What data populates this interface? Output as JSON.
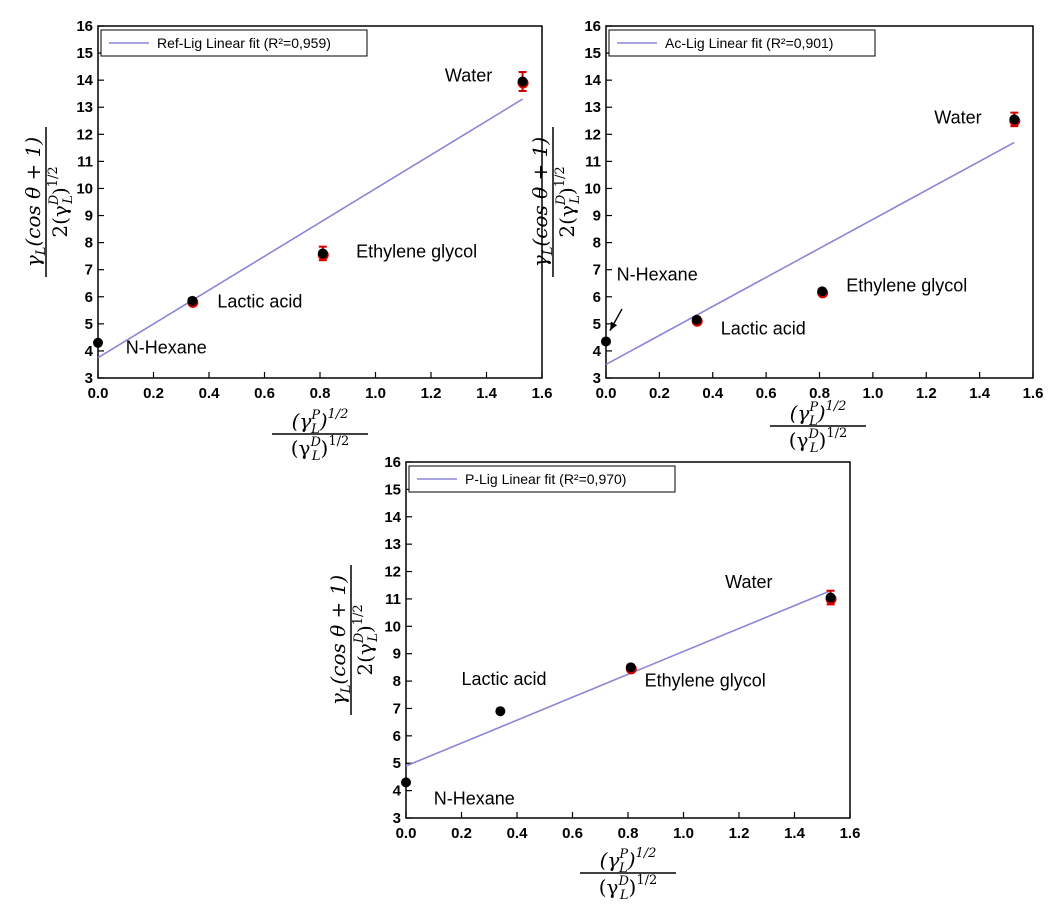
{
  "chart_data": [
    {
      "type": "scatter",
      "panel": "top-left",
      "xlim": [
        0,
        1.6
      ],
      "ylim": [
        3,
        16
      ],
      "xticks": [
        "0.0",
        "0.2",
        "0.4",
        "0.6",
        "0.8",
        "1.0",
        "1.2",
        "1.4",
        "1.6"
      ],
      "yticks": [
        "3",
        "4",
        "5",
        "6",
        "7",
        "8",
        "9",
        "10",
        "11",
        "12",
        "13",
        "14",
        "15",
        "16"
      ],
      "legend": {
        "label": "Ref-Lig Linear fit (R²=0,959)",
        "placement": "top-left"
      },
      "points": [
        {
          "name": "N-Hexane",
          "x": 0.0,
          "y": 4.3,
          "err": 0
        },
        {
          "name": "Lactic acid",
          "x": 0.34,
          "y": 5.85,
          "err": 0.1
        },
        {
          "name": "Ethylene glycol",
          "x": 0.81,
          "y": 7.6,
          "err": 0.25
        },
        {
          "name": "Water",
          "x": 1.53,
          "y": 13.95,
          "err": 0.35
        }
      ],
      "fit": {
        "x": [
          0.0,
          1.53
        ],
        "y": [
          3.75,
          13.3
        ]
      },
      "labels": [
        {
          "text": "N-Hexane",
          "x": 0.1,
          "y": 3.9
        },
        {
          "text": "Lactic acid",
          "x": 0.43,
          "y": 5.6
        },
        {
          "text": "Ethylene glycol",
          "x": 0.93,
          "y": 7.45
        },
        {
          "text": "Water",
          "x": 1.25,
          "y": 13.95
        }
      ]
    },
    {
      "type": "scatter",
      "panel": "top-right",
      "xlim": [
        0,
        1.6
      ],
      "ylim": [
        3,
        16
      ],
      "xticks": [
        "0.0",
        "0.2",
        "0.4",
        "0.6",
        "0.8",
        "1.0",
        "1.2",
        "1.4",
        "1.6"
      ],
      "yticks": [
        "3",
        "4",
        "5",
        "6",
        "7",
        "8",
        "9",
        "10",
        "11",
        "12",
        "13",
        "14",
        "15",
        "16"
      ],
      "legend": {
        "label": "Ac-Lig Linear fit (R²=0,901)",
        "placement": "top-left"
      },
      "points": [
        {
          "name": "N-Hexane",
          "x": 0.0,
          "y": 4.35,
          "err": 0
        },
        {
          "name": "Lactic acid",
          "x": 0.34,
          "y": 5.15,
          "err": 0.1
        },
        {
          "name": "Ethylene glycol",
          "x": 0.81,
          "y": 6.2,
          "err": 0.1
        },
        {
          "name": "Water",
          "x": 1.53,
          "y": 12.55,
          "err": 0.25
        }
      ],
      "fit": {
        "x": [
          0.0,
          1.53
        ],
        "y": [
          3.5,
          11.7
        ]
      },
      "labels": [
        {
          "text": "N-Hexane",
          "x": 0.04,
          "y": 6.6
        },
        {
          "text": "Lactic acid",
          "x": 0.43,
          "y": 4.6
        },
        {
          "text": "Ethylene glycol",
          "x": 0.9,
          "y": 6.2
        },
        {
          "text": "Water",
          "x": 1.23,
          "y": 12.4
        }
      ],
      "arrow": {
        "from": [
          0.06,
          5.55
        ],
        "to": [
          0.015,
          4.75
        ]
      }
    },
    {
      "type": "scatter",
      "panel": "bottom",
      "xlim": [
        0,
        1.6
      ],
      "ylim": [
        3,
        16
      ],
      "xticks": [
        "0.0",
        "0.2",
        "0.4",
        "0.6",
        "0.8",
        "1.0",
        "1.2",
        "1.4",
        "1.6"
      ],
      "yticks": [
        "3",
        "4",
        "5",
        "6",
        "7",
        "8",
        "9",
        "10",
        "11",
        "12",
        "13",
        "14",
        "15",
        "16"
      ],
      "legend": {
        "label": "P-Lig Linear fit (R²=0,970)",
        "placement": "top-left"
      },
      "points": [
        {
          "name": "N-Hexane",
          "x": 0.0,
          "y": 4.3,
          "err": 0
        },
        {
          "name": "Lactic acid",
          "x": 0.34,
          "y": 6.9,
          "err": 0
        },
        {
          "name": "Ethylene glycol",
          "x": 0.81,
          "y": 8.5,
          "err": 0.1
        },
        {
          "name": "Water",
          "x": 1.53,
          "y": 11.05,
          "err": 0.25
        }
      ],
      "fit": {
        "x": [
          0.0,
          1.53
        ],
        "y": [
          4.9,
          11.3
        ]
      },
      "labels": [
        {
          "text": "N-Hexane",
          "x": 0.1,
          "y": 3.5
        },
        {
          "text": "Lactic acid",
          "x": 0.2,
          "y": 7.85
        },
        {
          "text": "Ethylene glycol",
          "x": 0.86,
          "y": 7.8
        },
        {
          "text": "Water",
          "x": 1.15,
          "y": 11.4
        }
      ]
    }
  ],
  "colors": {
    "fit": "#8b86d6",
    "marker": "#000000",
    "error": "#d40000",
    "frame": "#000000"
  },
  "ylabel_math": {
    "num": "γ",
    "num_sub": "L",
    "num_rest": "(cos θ + 1)",
    "den": "2(γ",
    "den_sup": "D",
    "den_sub": "L",
    "den_rest": ")",
    "den_exp": "1/2"
  },
  "xlabel_math": {
    "num": "(γ",
    "num_sup": "P",
    "num_sub": "L",
    "num_rest": ")",
    "num_exp": "1/2",
    "den": "(γ",
    "den_sup": "D",
    "den_sub": "L",
    "den_rest": ")",
    "den_exp": "1/2"
  }
}
